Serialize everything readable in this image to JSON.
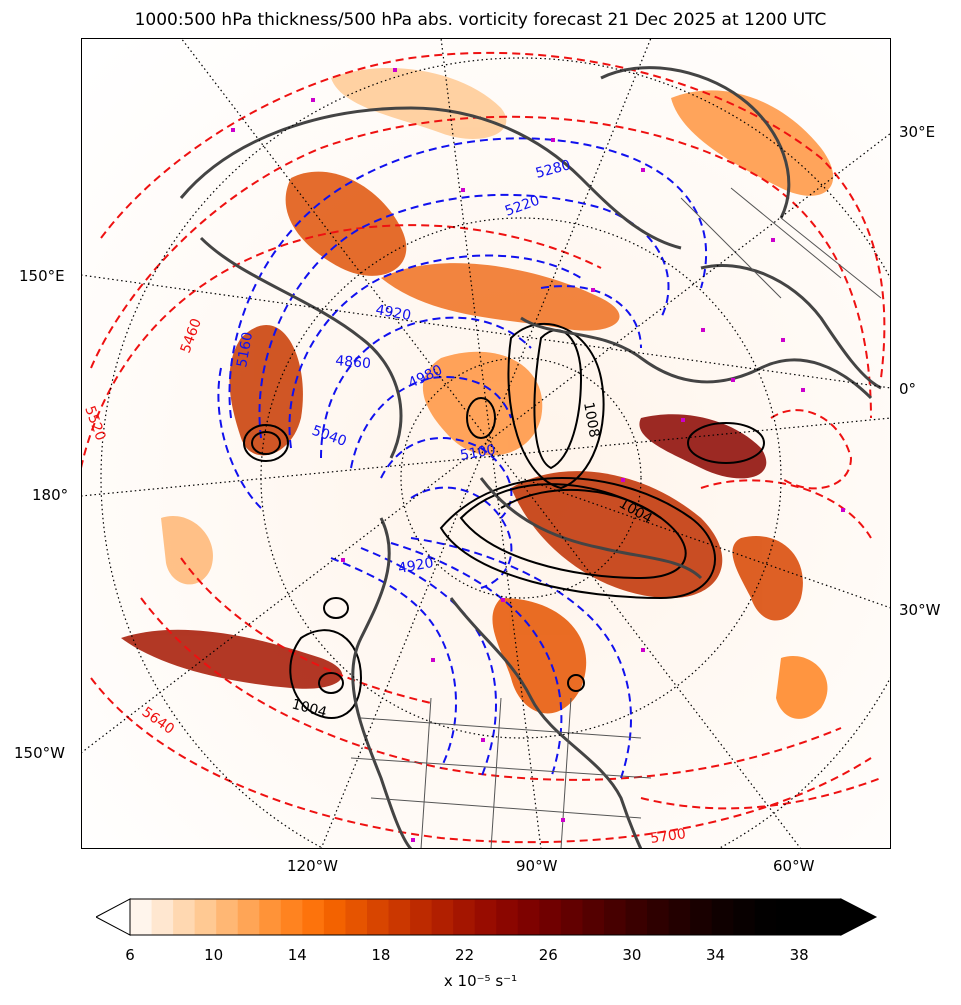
{
  "title": "1000:500 hPa thickness/500 hPa abs. vorticity forecast 21 Dec 2025 at 1200 UTC",
  "lon_labels": {
    "e30": "30°E",
    "e150": "150°E",
    "zero": "0°",
    "d180": "180°",
    "w30": "30°W",
    "w150": "150°W",
    "w120": "120°W",
    "w90": "90°W",
    "w60": "60°W"
  },
  "contour_labels": {
    "t5280": "5280",
    "t5220": "5220",
    "t4920a": "4920",
    "t5460": "5460",
    "t5160": "5160",
    "t4860": "4860",
    "t4980": "4980",
    "t5040": "5040",
    "t5100": "5100",
    "t5520": "5520",
    "t4920b": "4920",
    "t5640": "5640",
    "t5700": "5700",
    "p1004a": "1004",
    "p1004b": "1004",
    "p1008": "1008"
  },
  "colorbar": {
    "ticks": [
      "6",
      "10",
      "14",
      "18",
      "22",
      "26",
      "30",
      "34",
      "38"
    ],
    "label": "x 10⁻⁵ s⁻¹",
    "colors": [
      "#fff5ec",
      "#ffe7d0",
      "#ffd8b1",
      "#ffc993",
      "#ffb774",
      "#ffa556",
      "#ff9338",
      "#ff8320",
      "#fd730c",
      "#f36200",
      "#e65400",
      "#d84500",
      "#cb3700",
      "#bd2a00",
      "#b11f00",
      "#a41500",
      "#980c00",
      "#8b0600",
      "#7e0200",
      "#700000",
      "#620000",
      "#540000",
      "#470000",
      "#3a0000",
      "#2e0000",
      "#230000",
      "#190000",
      "#0f0000",
      "#080000",
      "#020000",
      "#000000",
      "#000000",
      "#000000"
    ]
  },
  "colors": {
    "thickness_warm": "#ee1111",
    "thickness_cold": "#1111ee",
    "mslp": "#000000",
    "coast": "#444444",
    "marker": "#cc00cc"
  }
}
